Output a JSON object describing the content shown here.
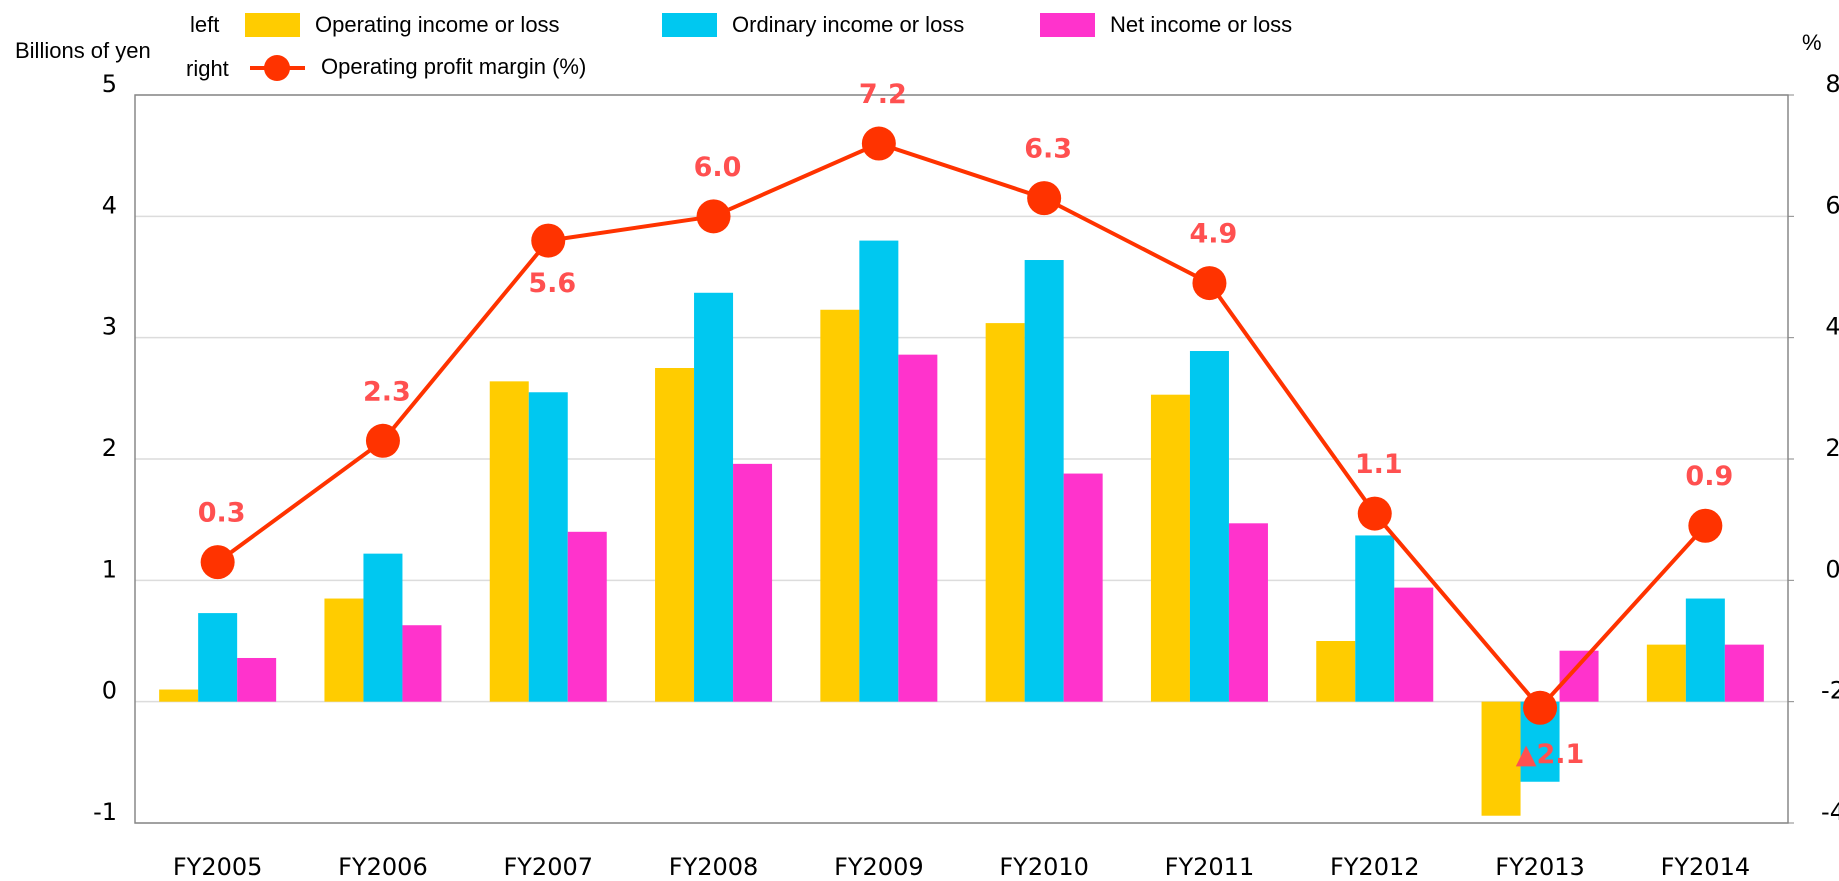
{
  "chart_data": {
    "type": "bar_line",
    "y_label": "Billions of yen",
    "y2_label": "%",
    "legend_left": "left",
    "legend_right": "right",
    "categories": [
      "FY2005",
      "FY2006",
      "FY2007",
      "FY2008",
      "FY2009",
      "FY2010",
      "FY2011",
      "FY2012",
      "FY2013",
      "FY2014"
    ],
    "series": [
      {
        "name": "Operating income or loss",
        "color": "#ffcc00",
        "values": [
          0.1,
          0.85,
          2.64,
          2.75,
          3.23,
          3.12,
          2.53,
          0.5,
          -0.94,
          0.47
        ]
      },
      {
        "name": "Ordinary income or loss",
        "color": "#00c8f0",
        "values": [
          0.73,
          1.22,
          2.55,
          3.37,
          3.8,
          3.64,
          2.89,
          1.37,
          -0.66,
          0.85
        ]
      },
      {
        "name": "Net income or loss",
        "color": "#ff33cc",
        "values": [
          0.36,
          0.63,
          1.4,
          1.96,
          2.86,
          1.88,
          1.47,
          0.94,
          0.42,
          0.47
        ]
      },
      {
        "name": "Operating profit margin (%)",
        "color": "#ff3300",
        "type": "line",
        "axis": "y2",
        "values": [
          0.3,
          2.3,
          5.6,
          6.0,
          7.2,
          6.3,
          4.9,
          1.1,
          -2.1,
          0.9
        ],
        "value_labels": [
          "0.3",
          "2.3",
          "5.6",
          "6.0",
          "7.2",
          "6.3",
          "4.9",
          "1.1",
          "▲2.1",
          "0.9"
        ]
      }
    ],
    "ylim": [
      -1,
      5
    ],
    "yticks": [
      -1,
      0,
      1,
      2,
      3,
      4,
      5
    ],
    "y2lim": [
      -4,
      8
    ],
    "y2ticks": [
      -4,
      -2,
      0,
      2,
      4,
      6,
      8
    ],
    "grid": true
  }
}
